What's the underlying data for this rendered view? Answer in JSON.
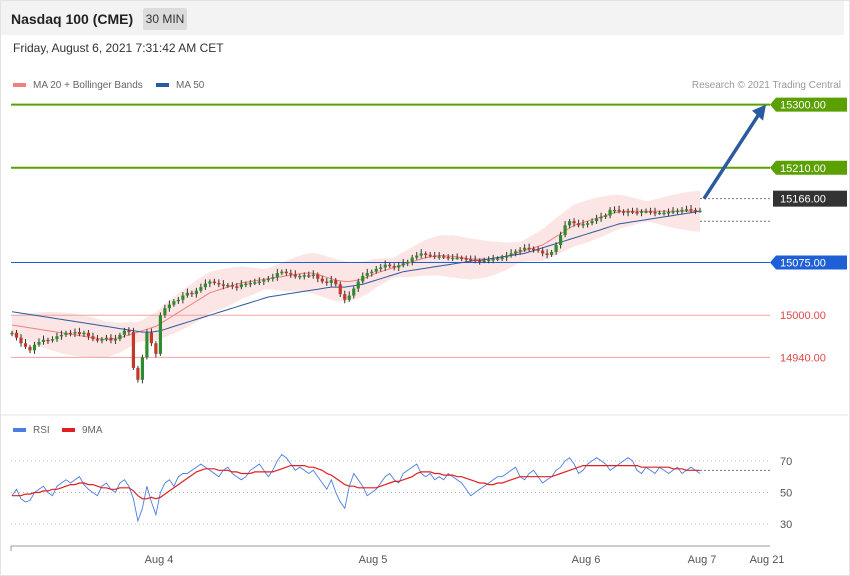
{
  "header": {
    "title": "Nasdaq 100 (CME)",
    "interval": "30 MIN"
  },
  "datetime": "Friday, August 6, 2021 7:31:42 AM CET",
  "legend": {
    "ma20": "MA 20 + Bollinger Bands",
    "ma50": "MA 50",
    "ma20_color": "#f08080",
    "ma50_color": "#2c5aa0"
  },
  "credit": "Research © 2021 Trading Central",
  "rsi_legend": {
    "rsi": "RSI",
    "ma9": "9MA",
    "rsi_color": "#4a7ee0",
    "ma9_color": "#e02020"
  },
  "chart_data": [
    {
      "type": "line",
      "title": "",
      "x_labels": [
        "Aug 4",
        "Aug 5",
        "Aug 6",
        "Aug 7",
        "Aug 21"
      ],
      "y_range": [
        14865,
        15335
      ],
      "current_price": 15166.0,
      "levels": [
        {
          "value": 15300.0,
          "label": "15300.00",
          "color": "#5aa000",
          "kind": "target"
        },
        {
          "value": 15210.0,
          "label": "15210.00",
          "color": "#5aa000",
          "kind": "resistance"
        },
        {
          "value": 15166.0,
          "label": "15166.00",
          "color": "#333333",
          "kind": "last"
        },
        {
          "value": 15075.0,
          "label": "15075.00",
          "color": "#1e5fd6",
          "kind": "pivot"
        },
        {
          "value": 15000.0,
          "label": "15000.00",
          "color": "#e04848",
          "kind": "support"
        },
        {
          "value": 14940.0,
          "label": "14940.00",
          "color": "#e04848",
          "kind": "support"
        }
      ],
      "arrow": {
        "from": 15166,
        "to": 15300
      },
      "close_series": [
        14975,
        14968,
        14960,
        14955,
        14950,
        14958,
        14962,
        14965,
        14964,
        14966,
        14970,
        14972,
        14975,
        14974,
        14976,
        14973,
        14975,
        14970,
        14966,
        14965,
        14966,
        14968,
        14964,
        14966,
        14972,
        14978,
        14976,
        14925,
        14908,
        14940,
        14975,
        14960,
        14945,
        15000,
        15010,
        15015,
        15020,
        15022,
        15028,
        15032,
        15030,
        15035,
        15040,
        15045,
        15048,
        15046,
        15044,
        15042,
        15043,
        15041,
        15040,
        15044,
        15045,
        15046,
        15047,
        15048,
        15050,
        15052,
        15054,
        15060,
        15062,
        15060,
        15058,
        15055,
        15056,
        15057,
        15056,
        15058,
        15052,
        15048,
        15046,
        15050,
        15044,
        15030,
        15022,
        15028,
        15038,
        15048,
        15056,
        15060,
        15062,
        15066,
        15068,
        15072,
        15070,
        15068,
        15071,
        15074,
        15076,
        15082,
        15085,
        15088,
        15086,
        15085,
        15084,
        15084,
        15083,
        15082,
        15082,
        15082,
        15081,
        15080,
        15079,
        15078,
        15077,
        15078,
        15079,
        15080,
        15081,
        15082,
        15085,
        15088,
        15091,
        15093,
        15096,
        15095,
        15094,
        15092,
        15088,
        15086,
        15090,
        15100,
        15114,
        15128,
        15134,
        15131,
        15128,
        15130,
        15131,
        15134,
        15138,
        15140,
        15142,
        15150,
        15150,
        15148,
        15146,
        15148,
        15147,
        15146,
        15148,
        15148,
        15147,
        15146,
        15146,
        15146,
        15147,
        15148,
        15149,
        15150,
        15151,
        15150,
        15149,
        15149
      ],
      "ma20_approx": [
        14986,
        14985,
        14984,
        14983,
        14982,
        14981,
        14980,
        14979,
        14978,
        14977,
        14976,
        14975,
        14974,
        14973,
        14972,
        14971,
        14970,
        14969,
        14968,
        14967,
        14966,
        14965,
        14966,
        14967,
        14968,
        14970,
        14972,
        14974,
        14976,
        14978,
        14980,
        14982,
        14984,
        14988,
        14992,
        14996,
        15000,
        15004,
        15008,
        15012,
        15016,
        15020,
        15024,
        15028,
        15032,
        15034,
        15036,
        15038,
        15040,
        15042,
        15044,
        15046,
        15047,
        15048,
        15049,
        15050,
        15051,
        15052,
        15053,
        15054,
        15055,
        15056,
        15057,
        15058,
        15059,
        15060,
        15060,
        15060,
        15058,
        15056,
        15054,
        15052,
        15050,
        15049,
        15048,
        15048,
        15049,
        15050,
        15052,
        15054,
        15057,
        15060,
        15062,
        15064,
        15066,
        15068,
        15070,
        15072,
        15074,
        15076,
        15078,
        15080,
        15082,
        15083,
        15084,
        15085,
        15085,
        15084,
        15084,
        15083,
        15082,
        15081,
        15080,
        15080,
        15080,
        15080,
        15080,
        15081,
        15082,
        15083,
        15084,
        15086,
        15088,
        15090,
        15092,
        15094,
        15096,
        15098,
        15100,
        15104,
        15108,
        15112,
        15116,
        15120,
        15124,
        15128,
        15130,
        15132,
        15134,
        15136,
        15138,
        15140,
        15142,
        15144,
        15146,
        15147,
        15148,
        15148,
        15148,
        15148,
        15148,
        15148,
        15148,
        15148,
        15148,
        15148,
        15148,
        15148,
        15148,
        15148,
        15148,
        15148,
        15148,
        15148
      ],
      "ma50_approx": [
        15005,
        15004,
        15003,
        15002,
        15001,
        15000,
        14999,
        14998,
        14997,
        14996,
        14995,
        14994,
        14993,
        14992,
        14991,
        14990,
        14989,
        14988,
        14987,
        14986,
        14985,
        14984,
        14983,
        14982,
        14981,
        14980,
        14979,
        14978,
        14977,
        14976,
        14976,
        14976,
        14977,
        14978,
        14980,
        14982,
        14984,
        14986,
        14988,
        14990,
        14992,
        14994,
        14996,
        14998,
        15000,
        15002,
        15004,
        15006,
        15008,
        15010,
        15012,
        15014,
        15016,
        15018,
        15020,
        15022,
        15024,
        15026,
        15027,
        15028,
        15029,
        15030,
        15031,
        15032,
        15033,
        15034,
        15035,
        15036,
        15037,
        15038,
        15039,
        15040,
        15040,
        15040,
        15040,
        15041,
        15042,
        15043,
        15044,
        15046,
        15048,
        15050,
        15052,
        15054,
        15056,
        15058,
        15060,
        15062,
        15063,
        15064,
        15065,
        15066,
        15067,
        15068,
        15069,
        15070,
        15071,
        15072,
        15073,
        15074,
        15075,
        15076,
        15077,
        15078,
        15078,
        15079,
        15080,
        15081,
        15082,
        15083,
        15084,
        15085,
        15086,
        15087,
        15088,
        15090,
        15092,
        15094,
        15096,
        15098,
        15100,
        15102,
        15104,
        15106,
        15108,
        15110,
        15112,
        15114,
        15116,
        15118,
        15120,
        15122,
        15124,
        15126,
        15128,
        15130,
        15131,
        15132,
        15133,
        15134,
        15135,
        15136,
        15137,
        15138,
        15139,
        15140,
        15141,
        15142,
        15143,
        15144,
        15145,
        15146,
        15147,
        15148
      ]
    },
    {
      "type": "line",
      "title": "",
      "y_range": [
        20,
        80
      ],
      "y_ticks": [
        "70",
        "50",
        "30"
      ],
      "y_tick_values": [
        70,
        50,
        30
      ],
      "series": [
        {
          "name": "RSI",
          "color": "#4a7ee0",
          "values": [
            48,
            52,
            46,
            44,
            45,
            50,
            52,
            54,
            50,
            48,
            54,
            56,
            58,
            56,
            58,
            60,
            55,
            52,
            50,
            48,
            54,
            56,
            52,
            50,
            56,
            58,
            54,
            46,
            32,
            40,
            54,
            44,
            36,
            50,
            56,
            58,
            54,
            60,
            62,
            62,
            64,
            66,
            68,
            66,
            64,
            62,
            60,
            64,
            66,
            62,
            60,
            58,
            60,
            64,
            66,
            68,
            64,
            60,
            64,
            70,
            74,
            72,
            68,
            64,
            66,
            64,
            62,
            64,
            60,
            56,
            52,
            58,
            50,
            44,
            40,
            54,
            62,
            58,
            54,
            48,
            50,
            52,
            56,
            60,
            62,
            58,
            56,
            62,
            64,
            66,
            68,
            62,
            60,
            62,
            58,
            60,
            58,
            62,
            60,
            58,
            56,
            52,
            48,
            50,
            52,
            54,
            56,
            58,
            60,
            60,
            62,
            64,
            66,
            60,
            58,
            62,
            64,
            60,
            56,
            58,
            60,
            64,
            66,
            70,
            72,
            68,
            62,
            64,
            68,
            70,
            72,
            70,
            68,
            64,
            66,
            68,
            70,
            72,
            70,
            64,
            62,
            66,
            64,
            62,
            66,
            64,
            62,
            64,
            66,
            62,
            64,
            66,
            64,
            62
          ]
        },
        {
          "name": "9MA",
          "color": "#e02020",
          "values": [
            48,
            48,
            48,
            49,
            49,
            50,
            50,
            51,
            51,
            52,
            52,
            53,
            54,
            55,
            55,
            56,
            56,
            55,
            55,
            54,
            53,
            53,
            52,
            52,
            53,
            53,
            53,
            51,
            48,
            46,
            46,
            47,
            46,
            47,
            49,
            51,
            53,
            55,
            57,
            59,
            61,
            63,
            64,
            65,
            65,
            65,
            64,
            64,
            64,
            63,
            63,
            62,
            62,
            62,
            63,
            63,
            63,
            63,
            63,
            64,
            65,
            66,
            67,
            67,
            67,
            67,
            66,
            66,
            65,
            64,
            62,
            61,
            59,
            57,
            55,
            54,
            54,
            53,
            53,
            53,
            53,
            53,
            54,
            55,
            56,
            57,
            57,
            58,
            59,
            60,
            62,
            63,
            63,
            63,
            62,
            62,
            61,
            61,
            61,
            60,
            60,
            59,
            58,
            57,
            56,
            56,
            55,
            55,
            56,
            56,
            57,
            58,
            59,
            60,
            60,
            60,
            60,
            60,
            60,
            60,
            60,
            61,
            62,
            63,
            64,
            65,
            66,
            67,
            67,
            67,
            67,
            67,
            67,
            67,
            67,
            67,
            67,
            67,
            67,
            67,
            66,
            66,
            66,
            66,
            66,
            66,
            66,
            65,
            65,
            65,
            64,
            64,
            64,
            64
          ]
        }
      ]
    }
  ]
}
